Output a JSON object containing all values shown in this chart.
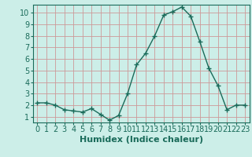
{
  "x": [
    0,
    1,
    2,
    3,
    4,
    5,
    6,
    7,
    8,
    9,
    10,
    11,
    12,
    13,
    14,
    15,
    16,
    17,
    18,
    19,
    20,
    21,
    22,
    23
  ],
  "y": [
    2.2,
    2.2,
    2.0,
    1.6,
    1.5,
    1.4,
    1.7,
    1.2,
    0.7,
    1.1,
    3.0,
    5.5,
    6.5,
    8.0,
    9.8,
    10.1,
    10.5,
    9.7,
    7.5,
    5.2,
    3.7,
    1.6,
    2.0,
    2.0
  ],
  "line_color": "#1a6b5a",
  "marker": "+",
  "marker_size": 5,
  "line_width": 1.0,
  "background_color": "#cceee8",
  "grid_color": "#cc9999",
  "xlabel": "Humidex (Indice chaleur)",
  "xlabel_fontsize": 8,
  "xlim": [
    -0.5,
    23.5
  ],
  "ylim": [
    0.5,
    10.7
  ],
  "yticks": [
    1,
    2,
    3,
    4,
    5,
    6,
    7,
    8,
    9,
    10
  ],
  "xticks": [
    0,
    1,
    2,
    3,
    4,
    5,
    6,
    7,
    8,
    9,
    10,
    11,
    12,
    13,
    14,
    15,
    16,
    17,
    18,
    19,
    20,
    21,
    22,
    23
  ],
  "tick_fontsize": 7
}
